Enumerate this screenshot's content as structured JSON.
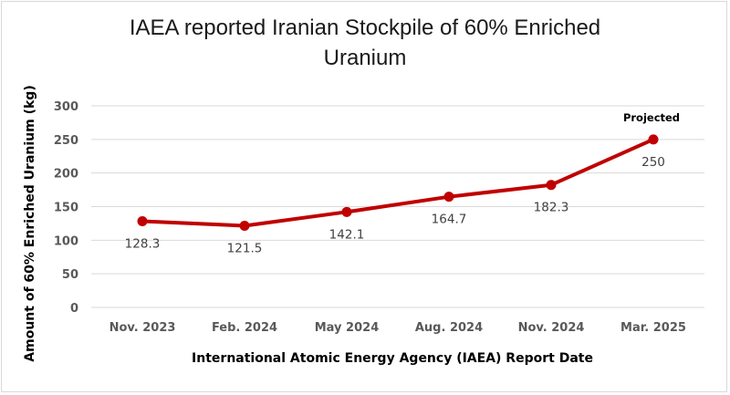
{
  "chart_data": {
    "type": "line",
    "title": "IAEA reported Iranian Stockpile of 60% Enriched Uranium",
    "xlabel": "International Atomic Energy Agency (IAEA) Report Date",
    "ylabel": "Amount of 60% Enriched Uranium (kg)",
    "categories": [
      "Nov. 2023",
      "Feb. 2024",
      "May 2024",
      "Aug. 2024",
      "Nov. 2024",
      "Mar. 2025"
    ],
    "series": [
      {
        "values": [
          128.3,
          121.5,
          142.1,
          164.7,
          182.3,
          250
        ],
        "color": "#c00000"
      }
    ],
    "data_labels": [
      "128.3",
      "121.5",
      "142.1",
      "164.7",
      "182.3",
      "250"
    ],
    "ylim": [
      0,
      300
    ],
    "yticks": [
      0,
      50,
      100,
      150,
      200,
      250,
      300
    ],
    "grid": true,
    "legend": "none",
    "annotations": [
      {
        "text": "Projected",
        "category": "Mar. 2025"
      }
    ]
  }
}
